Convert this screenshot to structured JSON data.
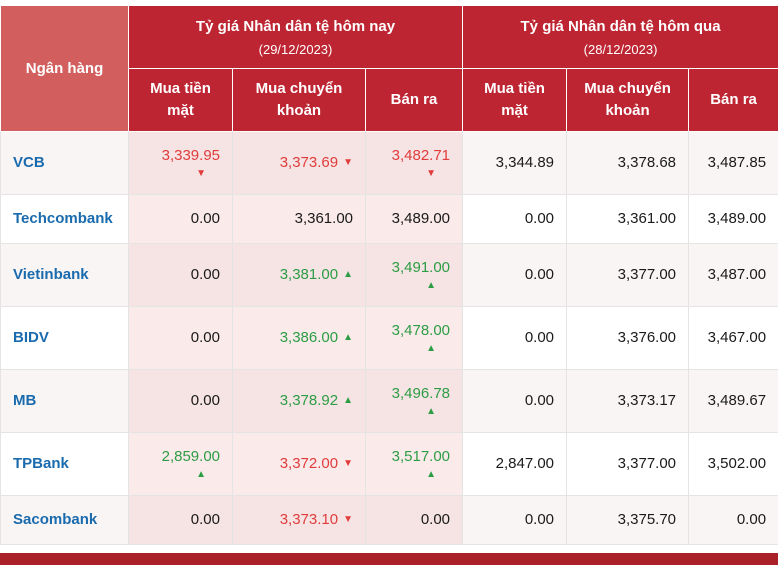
{
  "colors": {
    "header_red": "#BE2532",
    "header_red_light": "#D25E5E",
    "today_bg": "#FAEAEA",
    "today_bg_alt": "#F6E3E3",
    "row_alt_bg": "#FAF5F5",
    "bank_blue": "#1A6BAE",
    "down_red": "#E03C3C",
    "up_green": "#2C9D45",
    "footer_red": "#A92028"
  },
  "header": {
    "bank_col": "Ngân hàng",
    "today": {
      "title": "Tỷ giá Nhân dân tệ hôm nay",
      "date": "(29/12/2023)"
    },
    "yesterday": {
      "title": "Tỷ giá Nhân dân tệ hôm qua",
      "date": "(28/12/2023)"
    },
    "sub_columns": [
      "Mua tiền mặt",
      "Mua chuyển khoản",
      "Bán ra"
    ]
  },
  "rows": [
    {
      "bank": "VCB",
      "today": [
        {
          "value": "3,339.95",
          "color": "red",
          "arrow": "down",
          "arrow_pos": "below"
        },
        {
          "value": "3,373.69",
          "color": "red",
          "arrow": "down",
          "arrow_pos": "inline"
        },
        {
          "value": "3,482.71",
          "color": "red",
          "arrow": "down",
          "arrow_pos": "below"
        }
      ],
      "yesterday": [
        "3,344.89",
        "3,378.68",
        "3,487.85"
      ]
    },
    {
      "bank": "Techcombank",
      "today": [
        {
          "value": "0.00"
        },
        {
          "value": "3,361.00"
        },
        {
          "value": "3,489.00"
        }
      ],
      "yesterday": [
        "0.00",
        "3,361.00",
        "3,489.00"
      ]
    },
    {
      "bank": "Vietinbank",
      "today": [
        {
          "value": "0.00"
        },
        {
          "value": "3,381.00",
          "color": "green",
          "arrow": "up",
          "arrow_pos": "inline"
        },
        {
          "value": "3,491.00",
          "color": "green",
          "arrow": "up",
          "arrow_pos": "below"
        }
      ],
      "yesterday": [
        "0.00",
        "3,377.00",
        "3,487.00"
      ]
    },
    {
      "bank": "BIDV",
      "today": [
        {
          "value": "0.00"
        },
        {
          "value": "3,386.00",
          "color": "green",
          "arrow": "up",
          "arrow_pos": "inline"
        },
        {
          "value": "3,478.00",
          "color": "green",
          "arrow": "up",
          "arrow_pos": "below"
        }
      ],
      "yesterday": [
        "0.00",
        "3,376.00",
        "3,467.00"
      ]
    },
    {
      "bank": "MB",
      "today": [
        {
          "value": "0.00"
        },
        {
          "value": "3,378.92",
          "color": "green",
          "arrow": "up",
          "arrow_pos": "inline"
        },
        {
          "value": "3,496.78",
          "color": "green",
          "arrow": "up",
          "arrow_pos": "below"
        }
      ],
      "yesterday": [
        "0.00",
        "3,373.17",
        "3,489.67"
      ]
    },
    {
      "bank": "TPBank",
      "today": [
        {
          "value": "2,859.00",
          "color": "green",
          "arrow": "up",
          "arrow_pos": "below"
        },
        {
          "value": "3,372.00",
          "color": "red",
          "arrow": "down",
          "arrow_pos": "inline"
        },
        {
          "value": "3,517.00",
          "color": "green",
          "arrow": "up",
          "arrow_pos": "below"
        }
      ],
      "yesterday": [
        "2,847.00",
        "3,377.00",
        "3,502.00"
      ]
    },
    {
      "bank": "Sacombank",
      "today": [
        {
          "value": "0.00"
        },
        {
          "value": "3,373.10",
          "color": "red",
          "arrow": "down",
          "arrow_pos": "inline"
        },
        {
          "value": "0.00"
        }
      ],
      "yesterday": [
        "0.00",
        "3,375.70",
        "0.00"
      ]
    }
  ],
  "chart_data": {
    "type": "table",
    "title": "Tỷ giá Nhân dân tệ",
    "column_groups": [
      {
        "label": "Tỷ giá Nhân dân tệ hôm nay",
        "date": "29/12/2023",
        "columns": [
          "Mua tiền mặt",
          "Mua chuyển khoản",
          "Bán ra"
        ]
      },
      {
        "label": "Tỷ giá Nhân dân tệ hôm qua",
        "date": "28/12/2023",
        "columns": [
          "Mua tiền mặt",
          "Mua chuyển khoản",
          "Bán ra"
        ]
      }
    ],
    "banks": [
      "VCB",
      "Techcombank",
      "Vietinbank",
      "BIDV",
      "MB",
      "TPBank",
      "Sacombank"
    ],
    "today": {
      "mua_tien_mat": [
        3339.95,
        0,
        0,
        0,
        0,
        2859.0,
        0
      ],
      "mua_chuyen_khoan": [
        3373.69,
        3361.0,
        3381.0,
        3386.0,
        3378.92,
        3372.0,
        3373.1
      ],
      "ban_ra": [
        3482.71,
        3489.0,
        3491.0,
        3478.0,
        3496.78,
        3517.0,
        0
      ]
    },
    "yesterday": {
      "mua_tien_mat": [
        3344.89,
        0,
        0,
        0,
        0,
        2847.0,
        0
      ],
      "mua_chuyen_khoan": [
        3378.68,
        3361.0,
        3377.0,
        3376.0,
        3373.17,
        3377.0,
        3375.7
      ],
      "ban_ra": [
        3487.85,
        3489.0,
        3487.0,
        3467.0,
        3489.67,
        3502.0,
        0
      ]
    },
    "trend_today": {
      "mua_tien_mat": [
        "down",
        null,
        null,
        null,
        null,
        "up",
        null
      ],
      "mua_chuyen_khoan": [
        "down",
        null,
        "up",
        "up",
        "up",
        "down",
        "down"
      ],
      "ban_ra": [
        "down",
        null,
        "up",
        "up",
        "up",
        "up",
        null
      ]
    }
  }
}
